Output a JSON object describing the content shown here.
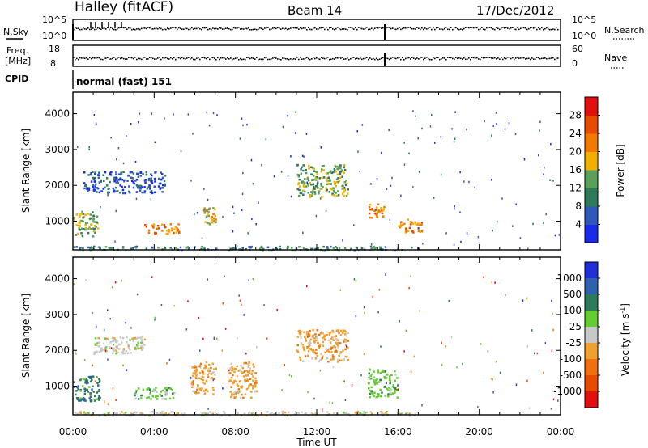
{
  "header": {
    "station": "Halley (fitACF)",
    "beam": "Beam 14",
    "date": "17/Dec/2012"
  },
  "top_panels": {
    "nsky_label": "N.Sky",
    "nsky_ticks": [
      "10^5",
      "10^0"
    ],
    "nsearch_label": "N.Search",
    "nsearch_ticks": [
      "10^5",
      "10^0"
    ],
    "freq_label": "Freq.",
    "freq_unit": "[MHz]",
    "freq_ticks": [
      "18",
      "8"
    ],
    "nave_label": "Nave",
    "nave_ticks": [
      "60",
      "0"
    ],
    "cpid_label": "CPID",
    "cpid_value": "normal (fast) 151"
  },
  "x_axis": {
    "label": "Time UT",
    "ticks": [
      "00:00",
      "04:00",
      "08:00",
      "12:00",
      "16:00",
      "20:00",
      "00:00"
    ]
  },
  "chart_data": [
    {
      "type": "heatmap",
      "name": "power",
      "ylabel": "Slant Range [km]",
      "y_ticks": [
        1000,
        2000,
        3000,
        4000
      ],
      "ylim": [
        200,
        4600
      ],
      "xlim_hours": [
        0,
        24
      ],
      "colorbar_label": "Power [dB]",
      "colorbar_ticks": [
        "4",
        "8",
        "12",
        "16",
        "20",
        "24",
        "28"
      ],
      "colorbar_colors": [
        "#1a2be8",
        "#2f58b8",
        "#2e7a5a",
        "#5aa05a",
        "#f0b000",
        "#f07a00",
        "#e84a00",
        "#e01010"
      ],
      "regions": [
        {
          "t": [
            0.0,
            1.2
          ],
          "r": [
            600,
            1300
          ],
          "level": 3
        },
        {
          "t": [
            3.5,
            5.2
          ],
          "r": [
            650,
            950
          ],
          "level": 5
        },
        {
          "t": [
            6.4,
            7.0
          ],
          "r": [
            900,
            1400
          ],
          "level": 4
        },
        {
          "t": [
            11.0,
            13.5
          ],
          "r": [
            1700,
            2600
          ],
          "level": 3
        },
        {
          "t": [
            14.5,
            15.3
          ],
          "r": [
            1100,
            1500
          ],
          "level": 5
        },
        {
          "t": [
            16.0,
            17.2
          ],
          "r": [
            700,
            1100
          ],
          "level": 5
        },
        {
          "t": [
            0.5,
            4.5
          ],
          "r": [
            1800,
            2400
          ],
          "level": 1
        },
        {
          "t": [
            0.0,
            17.0
          ],
          "r": [
            200,
            320
          ],
          "level": 2
        }
      ]
    },
    {
      "type": "heatmap",
      "name": "velocity",
      "ylabel": "Slant Range [km]",
      "y_ticks": [
        1000,
        2000,
        3000,
        4000
      ],
      "ylim": [
        200,
        4600
      ],
      "xlim_hours": [
        0,
        24
      ],
      "colorbar_label": "Velocity [m s",
      "colorbar_label_sup": "-1",
      "colorbar_label_end": "]",
      "colorbar_ticks": [
        "1000",
        "500",
        "100",
        "25",
        "-25",
        "-100",
        "-500",
        "-1000"
      ],
      "colorbar_colors": [
        "#2030d8",
        "#3060b0",
        "#2e7a5a",
        "#66cc33",
        "#c8c8c8",
        "#f0a030",
        "#f07010",
        "#e84a00",
        "#e01010"
      ],
      "regions": [
        {
          "t": [
            0.0,
            1.3
          ],
          "r": [
            600,
            1300
          ],
          "vel": "100"
        },
        {
          "t": [
            3.0,
            5.0
          ],
          "r": [
            650,
            1000
          ],
          "vel": "25"
        },
        {
          "t": [
            5.8,
            7.0
          ],
          "r": [
            800,
            1700
          ],
          "vel": "-100"
        },
        {
          "t": [
            7.6,
            9.0
          ],
          "r": [
            700,
            1700
          ],
          "vel": "-100"
        },
        {
          "t": [
            11.0,
            13.5
          ],
          "r": [
            1700,
            2600
          ],
          "vel": "-100"
        },
        {
          "t": [
            14.5,
            16.0
          ],
          "r": [
            700,
            1500
          ],
          "vel": "25"
        },
        {
          "t": [
            1.0,
            3.5
          ],
          "r": [
            1900,
            2400
          ],
          "vel": "-25"
        },
        {
          "t": [
            0.0,
            17.0
          ],
          "r": [
            200,
            320
          ],
          "vel": "-25"
        }
      ]
    }
  ]
}
